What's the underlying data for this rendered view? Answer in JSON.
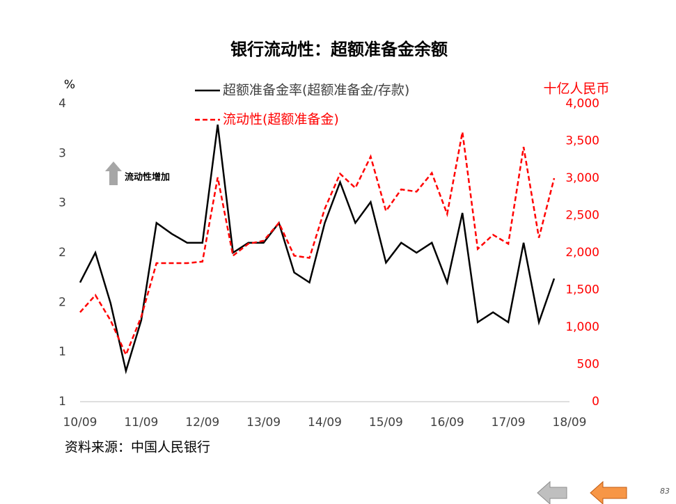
{
  "chart_data": {
    "type": "line",
    "title": "银行流动性：超额准备金余额",
    "y_label": "%",
    "y2_label": "十亿人民币",
    "annotation": "流动性增加",
    "source": "资料来源：中国人民银行",
    "legend": "top",
    "categories": [
      "10/09",
      null,
      null,
      null,
      "11/09",
      null,
      null,
      null,
      "12/09",
      null,
      null,
      null,
      "13/09",
      null,
      null,
      null,
      "14/09",
      null,
      null,
      null,
      "15/09",
      null,
      null,
      null,
      "16/09",
      null,
      null,
      null,
      "17/09",
      null,
      null,
      null,
      "18/09"
    ],
    "series": [
      {
        "name": "超额准备金率(超额准备金/存款)",
        "color": "#000000",
        "dashed": false,
        "axis": "y",
        "values": [
          1.7,
          2.0,
          1.49,
          0.81,
          1.32,
          2.3,
          2.19,
          2.1,
          2.1,
          3.29,
          2.0,
          2.1,
          2.1,
          2.3,
          1.8,
          1.7,
          2.3,
          2.71,
          2.3,
          2.51,
          1.9,
          2.1,
          2.0,
          2.1,
          1.7,
          2.4,
          1.3,
          1.4,
          1.3,
          2.1,
          1.3,
          1.74,
          null
        ]
      },
      {
        "name": "流动性(超额准备金)",
        "color": "#ff0000",
        "dashed": true,
        "axis": "y2",
        "values": [
          1200,
          1430,
          1090,
          630,
          1140,
          1860,
          1860,
          1860,
          1880,
          3010,
          1960,
          2120,
          2160,
          2400,
          1960,
          1930,
          2590,
          3060,
          2870,
          3290,
          2560,
          2850,
          2820,
          3070,
          2520,
          3620,
          2050,
          2240,
          2120,
          3420,
          2200,
          3000,
          null
        ]
      }
    ],
    "ylim": [
      0.5,
      3.5
    ],
    "yticks": [
      {
        "value": 0.5,
        "label": "1"
      },
      {
        "value": 1.0,
        "label": "1"
      },
      {
        "value": 1.5,
        "label": "2"
      },
      {
        "value": 2.0,
        "label": "2"
      },
      {
        "value": 2.5,
        "label": "3"
      },
      {
        "value": 3.0,
        "label": "3"
      },
      {
        "value": 3.5,
        "label": "4"
      }
    ],
    "y2lim": [
      0,
      4000
    ],
    "y2ticks": [
      0,
      500,
      {
        "value": 1000,
        "label": "1,000"
      },
      {
        "value": 1500,
        "label": "1,500"
      },
      {
        "value": 2000,
        "label": "2,000"
      },
      {
        "value": 2500,
        "label": "2,500"
      },
      {
        "value": 3000,
        "label": "3,000"
      },
      {
        "value": 3500,
        "label": "3,500"
      },
      {
        "value": 4000,
        "label": "4,000"
      }
    ],
    "y2color": "#ff0000",
    "grid": false
  },
  "page_number": "83"
}
